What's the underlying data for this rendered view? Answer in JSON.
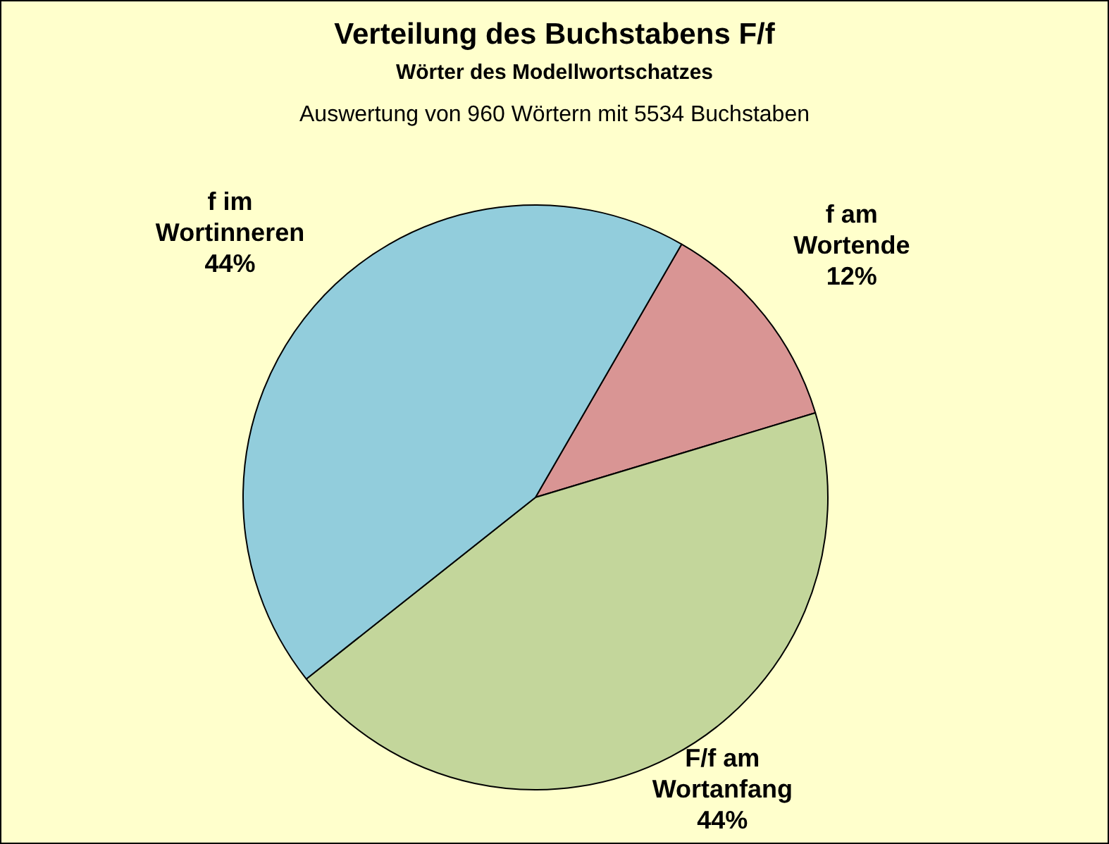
{
  "chart_data": {
    "type": "pie",
    "title": "Verteilung des Buchstabens F/f",
    "subtitle": "Wörter des Modellwortschatzes",
    "annotations": [
      "Auswertung von 960 Wörtern mit 5534 Buchstaben"
    ],
    "categories": [
      "f am Wortende",
      "F/f am Wortanfang",
      "f im Wortinneren"
    ],
    "values": [
      12,
      44,
      44
    ],
    "value_labels": [
      "12%",
      "44%",
      "44%"
    ],
    "colors": [
      "#d99594",
      "#c3d69b",
      "#92cddc"
    ],
    "legend": false
  }
}
